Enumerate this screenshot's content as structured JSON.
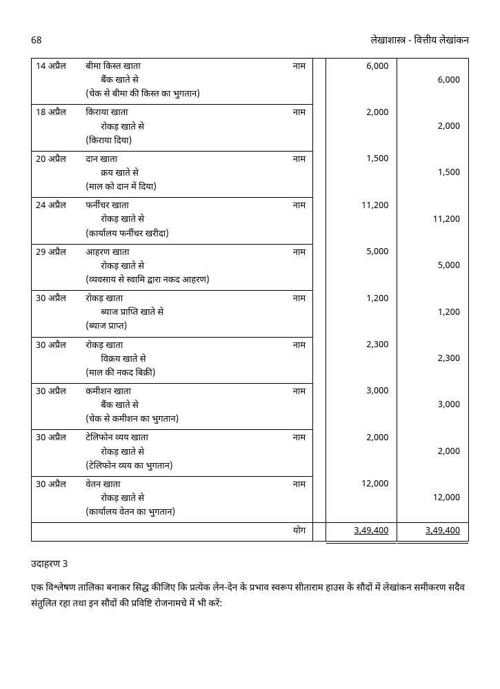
{
  "header": {
    "page_number": "68",
    "book_title": "लेखाशास्त्र - वित्तीय लेखांकन"
  },
  "label_naam": "नाम",
  "entries": [
    {
      "date": "14 अप्रैल",
      "main": "बीमा किस्त खाता",
      "sub": "बैंक खाते से",
      "note": "(चेक से बीमा की किस्त का भुगतान)",
      "dr": "6,000",
      "cr": "6,000"
    },
    {
      "date": "18 अप्रैल",
      "main": "किराया खाता",
      "sub": "रोकड़ खाते से",
      "note": "(किराया दिया)",
      "dr": "2,000",
      "cr": "2,000"
    },
    {
      "date": "20 अप्रैल",
      "main": "दान खाता",
      "sub": "क्रय खाते से",
      "note": "(माल को दान में दिया)",
      "dr": "1,500",
      "cr": "1,500"
    },
    {
      "date": "24 अप्रैल",
      "main": "फर्नीचर खाता",
      "sub": "रोकड़ खाते से",
      "note": "(कार्यालय फर्नीचर खरीदा)",
      "dr": "11,200",
      "cr": "11,200"
    },
    {
      "date": "29 अप्रैल",
      "main": "आहरण खाता",
      "sub": "रोकड़ खाते से",
      "note": "(व्यवसाय से स्वामि द्वारा नकद आहरण)",
      "dr": "5,000",
      "cr": "5,000"
    },
    {
      "date": "30 अप्रैल",
      "main": "रोकड़ खाता",
      "sub": "ब्याज प्राप्ति खाते से",
      "note": "(ब्याज प्राप्त)",
      "dr": "1,200",
      "cr": "1,200"
    },
    {
      "date": "30 अप्रैल",
      "main": "रोकड़ खाता",
      "sub": "विक्रय खाते से",
      "note": "(माल की नकद बिक्री)",
      "dr": "2,300",
      "cr": "2,300"
    },
    {
      "date": "30 अप्रैल",
      "main": "कमीशन खाता",
      "sub": "बैंक खाते से",
      "note": "(चेक से कमीशन का भुगतान)",
      "dr": "3,000",
      "cr": "3,000"
    },
    {
      "date": "30 अप्रैल",
      "main": "टेलिफोन व्यय खाता",
      "sub": "रोकड़ खाते से",
      "note": "(टेलिफोन व्यय का भुगतान)",
      "dr": "2,000",
      "cr": "2,000"
    },
    {
      "date": "30 अप्रैल",
      "main": "वेतन खाता",
      "sub": "रोकड़ खाते से",
      "note": "(कार्यालय वेतन का भुगतान)",
      "dr": "12,000",
      "cr": "12,000"
    }
  ],
  "totals": {
    "label": "योग",
    "dr": "3,49,400",
    "cr": "3,49,400"
  },
  "example": {
    "title": "उदाहरण 3",
    "text": "एक विश्लेषण तालिका बनाकर सिद्ध कीजिए कि प्रत्येक लेन-देन के प्रभाव स्वरूप सीताराम हाउस के सौदों में लेखांकन समीकरण सदैव संतुलित रहा तथा इन सौदों की प्रविष्टि रोजनामचे में भी करें:"
  }
}
